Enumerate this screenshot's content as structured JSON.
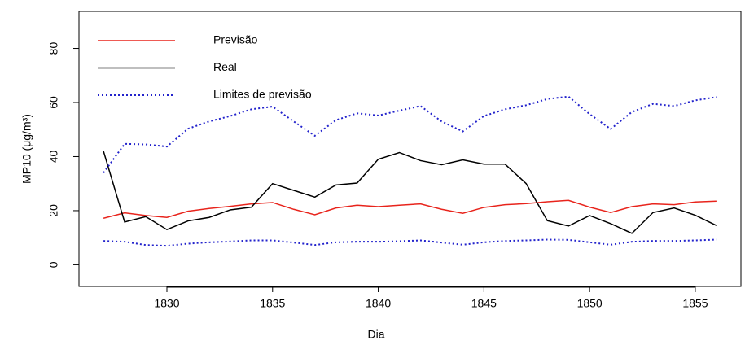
{
  "chart_data": {
    "type": "line",
    "x_label": "Dia",
    "y_label": "MP10 (μg/m³)",
    "x": [
      1827,
      1828,
      1829,
      1830,
      1831,
      1832,
      1833,
      1834,
      1835,
      1836,
      1837,
      1838,
      1839,
      1840,
      1841,
      1842,
      1843,
      1844,
      1845,
      1846,
      1847,
      1848,
      1849,
      1850,
      1851,
      1852,
      1853,
      1854,
      1855,
      1856
    ],
    "series": [
      {
        "name": "Previsão",
        "color": "#e8241c",
        "line_style": "solid",
        "values": [
          17.2,
          19.2,
          18.2,
          17.5,
          19.8,
          20.8,
          21.6,
          22.5,
          23,
          20.5,
          18.5,
          21,
          22,
          21.5,
          22,
          22.5,
          20.5,
          19,
          21.2,
          22.2,
          22.6,
          23.3,
          23.8,
          21.3,
          19.3,
          21.5,
          22.5,
          22.2,
          23.2,
          23.5
        ]
      },
      {
        "name": "Real",
        "color": "#000000",
        "line_style": "solid",
        "values": [
          42,
          15.8,
          17.8,
          13,
          16.2,
          17.5,
          20.3,
          21.3,
          30,
          27.5,
          25,
          29.5,
          30.2,
          39,
          41.5,
          38.5,
          37,
          38.8,
          37.2,
          37.2,
          30,
          16.3,
          14.3,
          18.2,
          15.2,
          11.6,
          19.3,
          21,
          18.3,
          14.5
        ]
      },
      {
        "name": "Limites de previsão",
        "color": "#2222cc",
        "line_style": "dotted",
        "upper": [
          34,
          44.7,
          44.5,
          43.7,
          50.3,
          53,
          55,
          57.5,
          58.5,
          53,
          47.7,
          53.5,
          56,
          55.2,
          57,
          58.7,
          53,
          49.3,
          55,
          57.5,
          59,
          61.3,
          62.2,
          55.7,
          50.2,
          56.5,
          59.5,
          58.7,
          60.8,
          62
        ],
        "lower": [
          8.8,
          8.5,
          7.3,
          7,
          7.8,
          8.3,
          8.6,
          9,
          9,
          8.2,
          7.3,
          8.3,
          8.5,
          8.5,
          8.7,
          9,
          8.2,
          7.4,
          8.3,
          8.8,
          9,
          9.3,
          9.2,
          8.3,
          7.4,
          8.5,
          8.8,
          8.8,
          9,
          9.3
        ]
      }
    ],
    "xlim": [
      1825.84,
      1857.16
    ],
    "xticks": [
      1830,
      1835,
      1840,
      1845,
      1850,
      1855
    ],
    "ylim": [
      -8,
      93.7
    ],
    "yticks": [
      0,
      20,
      40,
      60,
      80
    ],
    "grid": false,
    "legend": "top-left"
  }
}
